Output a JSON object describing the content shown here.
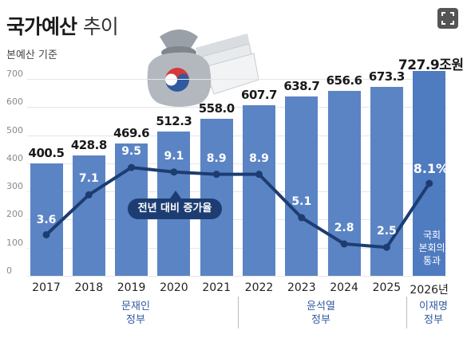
{
  "header": {
    "title_bold": "국가예산",
    "title_light": "추이",
    "subtitle": "본예산 기준"
  },
  "colors": {
    "bar": "#5b84c4",
    "line": "#1d3d72",
    "pill": "#1d3d72"
  },
  "pill_label": "전년 대비 증가율",
  "note": "국회 본회의 통과",
  "governments": [
    {
      "name_line1": "문재인",
      "name_line2": "정부"
    },
    {
      "name_line1": "윤석열",
      "name_line2": "정부"
    },
    {
      "name_line1": "이재명",
      "name_line2": "정부"
    }
  ],
  "chart_data": {
    "type": "bar",
    "ylim": [
      0,
      760
    ],
    "yticks": [
      0,
      100,
      200,
      300,
      400,
      500,
      600,
      700
    ],
    "ytick_labels": [
      "0",
      "100",
      "200",
      "300",
      "400",
      "500",
      "600",
      "700"
    ],
    "categories": [
      "2017",
      "2018",
      "2019",
      "2020",
      "2021",
      "2022",
      "2023",
      "2024",
      "2025",
      "2026년"
    ],
    "values": [
      400.5,
      428.8,
      469.6,
      512.3,
      558.0,
      607.7,
      638.7,
      656.6,
      673.3,
      727.9
    ],
    "value_labels": [
      "400.5",
      "428.8",
      "469.6",
      "512.3",
      "558.0",
      "607.7",
      "638.7",
      "656.6",
      "673.3",
      "727.9조원"
    ],
    "growth_rate": [
      3.6,
      7.1,
      9.5,
      9.1,
      8.9,
      8.9,
      5.1,
      2.8,
      2.5,
      8.1
    ],
    "growth_rate_labels": [
      "3.6",
      "7.1",
      "9.5",
      "9.1",
      "8.9",
      "8.9",
      "5.1",
      "2.8",
      "2.5",
      "8.1%"
    ],
    "rate_scale": [
      0,
      13
    ]
  }
}
